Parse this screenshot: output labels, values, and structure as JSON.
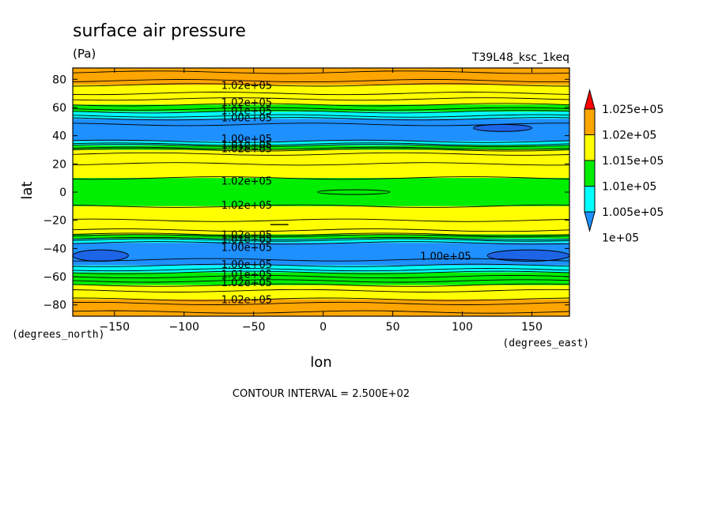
{
  "chart_data": {
    "type": "heatmap",
    "title": "surface air pressure",
    "units": "(Pa)",
    "run_label": "T39L48_ksc_1keq",
    "xlabel": "lon",
    "ylabel": "lat",
    "x_unit_label": "(degrees_east)",
    "y_unit_label": "(degrees_north)",
    "xlim": [
      -180,
      177
    ],
    "ylim": [
      -88,
      88
    ],
    "x_ticks": [
      -150,
      -100,
      -50,
      0,
      50,
      100,
      150
    ],
    "y_ticks": [
      -80,
      -60,
      -40,
      -20,
      0,
      20,
      40,
      60,
      80
    ],
    "contour_interval_text": "CONTOUR INTERVAL = 2.500E+02",
    "levels": [
      {
        "label": "1e+05",
        "color": "#1e90ff"
      },
      {
        "label": "1.005e+05",
        "color": "#00ffff"
      },
      {
        "label": "1.01e+05",
        "color": "#00ee00"
      },
      {
        "label": "1.015e+05",
        "color": "#ffff00"
      },
      {
        "label": "1.02e+05",
        "color": "#ffa500"
      },
      {
        "label": "1.025e+05",
        "color": "#ff0000"
      }
    ],
    "colors": {
      "below_min": "#1e64e6",
      "blue": "#1e90ff",
      "cyan": "#00ffff",
      "green": "#00ee00",
      "yellow": "#ffff00",
      "orange": "#ffa500",
      "red": "#ff0000"
    },
    "bands": [
      {
        "lat_from": 76,
        "lat_to": 88,
        "color": "orange"
      },
      {
        "lat_from": 62,
        "lat_to": 76,
        "color": "yellow"
      },
      {
        "lat_from": 57,
        "lat_to": 62,
        "color": "green"
      },
      {
        "lat_from": 52,
        "lat_to": 57,
        "color": "cyan"
      },
      {
        "lat_from": 36,
        "lat_to": 52,
        "color": "blue"
      },
      {
        "lat_from": 33,
        "lat_to": 36,
        "color": "cyan"
      },
      {
        "lat_from": 30,
        "lat_to": 33,
        "color": "green"
      },
      {
        "lat_from": 10,
        "lat_to": 30,
        "color": "yellow"
      },
      {
        "lat_from": -10,
        "lat_to": 10,
        "color": "green"
      },
      {
        "lat_from": -30,
        "lat_to": -10,
        "color": "yellow"
      },
      {
        "lat_from": -33,
        "lat_to": -30,
        "color": "green"
      },
      {
        "lat_from": -36,
        "lat_to": -33,
        "color": "cyan"
      },
      {
        "lat_from": -52,
        "lat_to": -36,
        "color": "blue"
      },
      {
        "lat_from": -57,
        "lat_to": -52,
        "color": "cyan"
      },
      {
        "lat_from": -66,
        "lat_to": -57,
        "color": "green"
      },
      {
        "lat_from": -76,
        "lat_to": -66,
        "color": "yellow"
      },
      {
        "lat_from": -88,
        "lat_to": -76,
        "color": "orange"
      }
    ],
    "contour_lines_lat": [
      85,
      79,
      76,
      70,
      66,
      62,
      59,
      57,
      54,
      52,
      48,
      36,
      34,
      33,
      31,
      30,
      27,
      20,
      10,
      -10,
      -20,
      -27,
      -30,
      -31,
      -33,
      -34,
      -36,
      -48,
      -52,
      -55,
      -57,
      -60,
      -63,
      -66,
      -70,
      -76,
      -79,
      -85
    ],
    "low_cells": [
      {
        "lon_from": 108,
        "lon_to": 150,
        "lat_from": 43,
        "lat_to": 48,
        "color": "below_min"
      },
      {
        "lon_from": -180,
        "lon_to": -140,
        "lat_from": -49,
        "lat_to": -41,
        "color": "below_min"
      },
      {
        "lon_from": 118,
        "lon_to": 177,
        "lat_from": -49,
        "lat_to": -41,
        "color": "below_min"
      }
    ],
    "contour_labels": [
      {
        "text": "1.02e+05",
        "lon": -55,
        "lat": 76
      },
      {
        "text": "1.02e+05",
        "lon": -55,
        "lat": 64
      },
      {
        "text": "1.01e+05",
        "lon": -55,
        "lat": 58
      },
      {
        "text": "1.00e+05",
        "lon": -55,
        "lat": 53
      },
      {
        "text": "1.00e+05",
        "lon": -55,
        "lat": 38
      },
      {
        "text": "1.01e+05",
        "lon": -55,
        "lat": 34
      },
      {
        "text": "1.02e+05",
        "lon": -55,
        "lat": 31
      },
      {
        "text": "1.02e+05",
        "lon": -55,
        "lat": 8
      },
      {
        "text": "1.02e+05",
        "lon": -55,
        "lat": -9
      },
      {
        "text": "1.02e+05",
        "lon": -55,
        "lat": -30
      },
      {
        "text": "1.01e+05",
        "lon": -55,
        "lat": -33
      },
      {
        "text": "1.00e+05",
        "lon": -55,
        "lat": -39
      },
      {
        "text": "1.00e+05",
        "lon": -55,
        "lat": -51
      },
      {
        "text": "1.01e+05",
        "lon": -55,
        "lat": -58
      },
      {
        "text": "1.02e+05",
        "lon": -55,
        "lat": -64
      },
      {
        "text": "1.02e+05",
        "lon": -55,
        "lat": -76
      },
      {
        "text": "1.00e+05",
        "lon": 88,
        "lat": -45
      }
    ]
  }
}
